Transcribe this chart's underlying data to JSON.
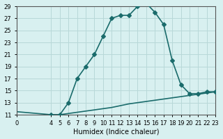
{
  "xlabel": "Humidex (Indice chaleur)",
  "bg_color": "#d8f0f0",
  "line_color": "#1a6b6b",
  "grid_color": "#b8d8d8",
  "x_main": [
    4,
    5,
    6,
    7,
    8,
    9,
    10,
    11,
    12,
    13,
    14,
    15,
    16,
    17,
    18,
    19,
    20,
    21,
    22,
    23
  ],
  "y_main": [
    11.0,
    11.0,
    13.0,
    17.0,
    19.0,
    21.0,
    24.0,
    27.0,
    27.5,
    27.5,
    29.0,
    29.5,
    28.0,
    26.0,
    20.0,
    16.0,
    14.5,
    14.5,
    14.8,
    14.8
  ],
  "x_ref": [
    0,
    4,
    5,
    6,
    7,
    8,
    9,
    10,
    11,
    12,
    13,
    14,
    15,
    16,
    17,
    18,
    19,
    20,
    21,
    22,
    23
  ],
  "y_ref": [
    11.5,
    11.0,
    11.0,
    11.2,
    11.4,
    11.6,
    11.8,
    12.0,
    12.2,
    12.5,
    12.8,
    13.0,
    13.2,
    13.4,
    13.6,
    13.8,
    14.0,
    14.2,
    14.4,
    14.6,
    14.8
  ],
  "xlim": [
    0,
    23
  ],
  "ylim": [
    11,
    29
  ],
  "yticks": [
    11,
    13,
    15,
    17,
    19,
    21,
    23,
    25,
    27,
    29
  ],
  "xticks": [
    0,
    4,
    5,
    6,
    7,
    8,
    9,
    10,
    11,
    12,
    13,
    14,
    15,
    16,
    17,
    18,
    19,
    20,
    21,
    22,
    23
  ],
  "marker": "D",
  "markersize": 3,
  "linewidth": 1.2,
  "fontsize_label": 7,
  "fontsize_tick": 6
}
